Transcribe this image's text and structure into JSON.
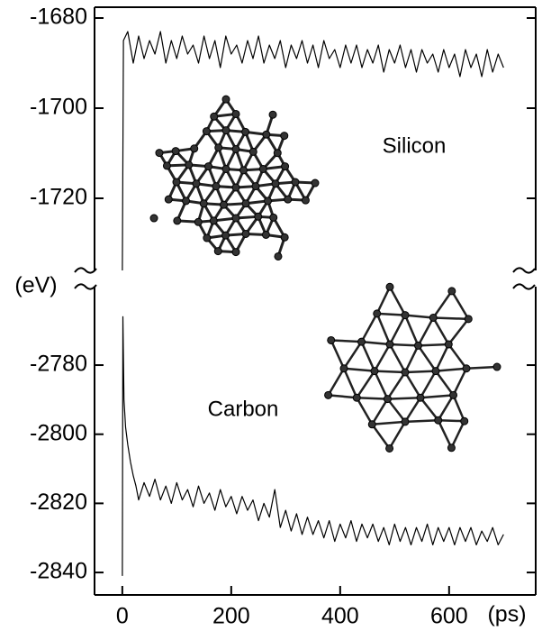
{
  "chart_data": [
    {
      "type": "line",
      "ylabel": "(eV)",
      "annotation": "Silicon",
      "xlim": [
        -51,
        759
      ],
      "ylim": [
        -1736,
        -1677.6
      ],
      "yticks": [
        -1680,
        -1700,
        -1720
      ],
      "color": "#000000",
      "x": [
        0,
        2,
        10,
        20,
        30,
        40,
        50,
        60,
        70,
        80,
        90,
        100,
        110,
        120,
        130,
        140,
        150,
        160,
        170,
        180,
        190,
        200,
        210,
        220,
        230,
        240,
        250,
        260,
        270,
        280,
        290,
        300,
        310,
        320,
        330,
        340,
        350,
        360,
        370,
        380,
        390,
        400,
        410,
        420,
        430,
        440,
        450,
        460,
        470,
        480,
        490,
        500,
        510,
        520,
        530,
        540,
        550,
        560,
        570,
        580,
        590,
        600,
        610,
        620,
        630,
        640,
        650,
        660,
        670,
        680,
        690,
        700
      ],
      "values": [
        -1736,
        -1685,
        -1683,
        -1690,
        -1684,
        -1689,
        -1685,
        -1688,
        -1683,
        -1690,
        -1685,
        -1689,
        -1684,
        -1688,
        -1686,
        -1690,
        -1684,
        -1689,
        -1685,
        -1691,
        -1684,
        -1688,
        -1686,
        -1690,
        -1685,
        -1689,
        -1684,
        -1690,
        -1686,
        -1689,
        -1685,
        -1691,
        -1686,
        -1689,
        -1685,
        -1690,
        -1686,
        -1691,
        -1685,
        -1689,
        -1687,
        -1691,
        -1686,
        -1690,
        -1686,
        -1691,
        -1687,
        -1690,
        -1686,
        -1692,
        -1687,
        -1690,
        -1686,
        -1691,
        -1687,
        -1692,
        -1687,
        -1690,
        -1688,
        -1692,
        -1687,
        -1691,
        -1688,
        -1693,
        -1687,
        -1691,
        -1688,
        -1693,
        -1687,
        -1692,
        -1688,
        -1691
      ]
    },
    {
      "type": "line",
      "xlabel": "(ps)",
      "annotation": "Carbon",
      "xlim": [
        -51,
        759
      ],
      "ylim": [
        -2846.5,
        -2757.3
      ],
      "xticks": [
        0,
        200,
        400,
        600
      ],
      "yticks": [
        -2780,
        -2800,
        -2820,
        -2840
      ],
      "color": "#000000",
      "x": [
        0,
        1,
        3,
        6,
        10,
        15,
        20,
        25,
        30,
        40,
        50,
        60,
        70,
        80,
        90,
        100,
        110,
        120,
        130,
        140,
        150,
        160,
        170,
        180,
        190,
        200,
        210,
        220,
        230,
        240,
        250,
        260,
        270,
        280,
        290,
        300,
        310,
        320,
        330,
        340,
        350,
        360,
        370,
        380,
        390,
        400,
        410,
        420,
        430,
        440,
        450,
        460,
        470,
        480,
        490,
        500,
        510,
        520,
        530,
        540,
        550,
        560,
        570,
        580,
        590,
        600,
        610,
        620,
        630,
        640,
        650,
        660,
        670,
        680,
        690,
        700
      ],
      "values": [
        -2841,
        -2766,
        -2790,
        -2798,
        -2803,
        -2808,
        -2812,
        -2815,
        -2819,
        -2814,
        -2818,
        -2813,
        -2819,
        -2815,
        -2820,
        -2814,
        -2819,
        -2816,
        -2821,
        -2815,
        -2820,
        -2817,
        -2822,
        -2816,
        -2821,
        -2818,
        -2823,
        -2818,
        -2822,
        -2819,
        -2825,
        -2820,
        -2824,
        -2816,
        -2827,
        -2822,
        -2828,
        -2823,
        -2829,
        -2824,
        -2829,
        -2825,
        -2830,
        -2825,
        -2831,
        -2826,
        -2830,
        -2825,
        -2831,
        -2826,
        -2830,
        -2826,
        -2831,
        -2827,
        -2832,
        -2826,
        -2831,
        -2827,
        -2832,
        -2827,
        -2831,
        -2826,
        -2832,
        -2827,
        -2831,
        -2827,
        -2832,
        -2827,
        -2831,
        -2827,
        -2832,
        -2828,
        -2831,
        -2827,
        -2832,
        -2829
      ]
    }
  ]
}
